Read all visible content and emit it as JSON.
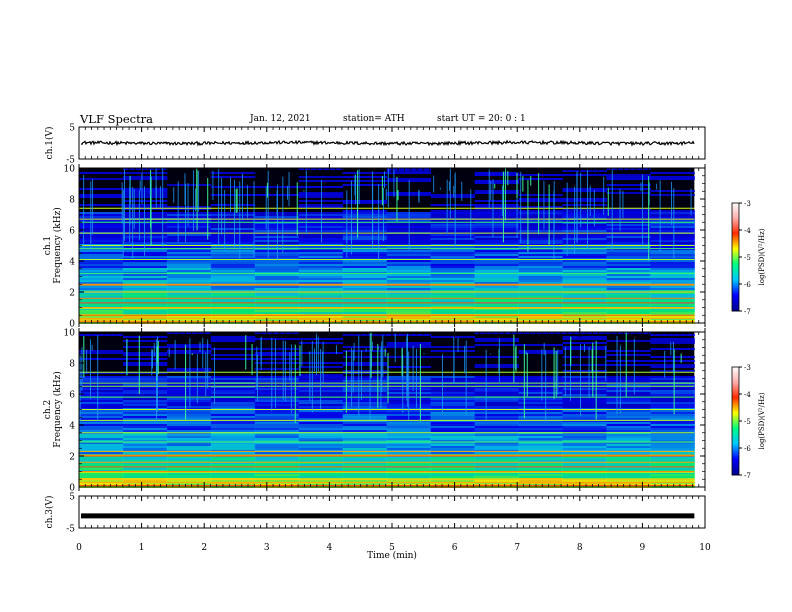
{
  "header": {
    "title": "VLF Spectra",
    "date": "Jan. 12, 2021",
    "station": "station= ATH",
    "start": "start UT = 20: 0 : 1"
  },
  "colors": {
    "spectrogram_bg": "#000010",
    "trace": "#000000",
    "colormap": [
      "#00008f",
      "#0000ff",
      "#00c8ff",
      "#00ff80",
      "#ffff00",
      "#ff2a00",
      "#ffb0b0",
      "#ffffff"
    ]
  },
  "chart_data": [
    {
      "type": "line",
      "name": "ch1-trace",
      "ylabel": "ch.1(V)",
      "ylim": [
        -5,
        5
      ],
      "yticks": [
        -5,
        5
      ],
      "xlim": [
        0,
        10
      ],
      "approx_level": 0,
      "approx_noise_amplitude": 0.7
    },
    {
      "type": "heatmap",
      "name": "ch1-spectrogram",
      "ylabel_channel": "ch.1",
      "ylabel": "Frequency (kHz)",
      "ylim": [
        0,
        10
      ],
      "yticks": [
        0,
        2,
        4,
        6,
        8,
        10
      ],
      "xlim": [
        0,
        10
      ],
      "data_end_min": 9.83,
      "colorbar": {
        "label": "log(PSD)(V²/Hz)",
        "range": [
          -7,
          -3
        ],
        "ticks": [
          -3,
          -4,
          -5,
          -6,
          -7
        ]
      },
      "band_lines_khz": [
        0.1,
        0.3,
        0.5,
        1.0,
        1.3,
        1.6,
        2.0,
        2.5,
        3.2,
        4.1,
        4.8,
        5.0,
        5.8,
        6.5,
        6.7,
        7.4
      ]
    },
    {
      "type": "heatmap",
      "name": "ch2-spectrogram",
      "ylabel_channel": "ch.2",
      "ylabel": "Frequency (kHz)",
      "ylim": [
        0,
        10
      ],
      "yticks": [
        0,
        2,
        4,
        6,
        8,
        10
      ],
      "xlim": [
        0,
        10
      ],
      "data_end_min": 9.83,
      "colorbar": {
        "label": "log(PSD)(V²/Hz)",
        "range": [
          -7,
          -3
        ],
        "ticks": [
          -3,
          -4,
          -5,
          -6,
          -7
        ]
      },
      "band_lines_khz": [
        0.1,
        0.3,
        0.5,
        1.0,
        1.3,
        1.6,
        2.0,
        2.3,
        2.9,
        3.5,
        4.3,
        5.0,
        5.8,
        6.5,
        6.7,
        7.4
      ]
    },
    {
      "type": "line",
      "name": "ch3-trace",
      "ylabel": "ch.3(V)",
      "ylim": [
        -5,
        5
      ],
      "yticks": [
        -5,
        5
      ],
      "xlim": [
        0,
        10
      ],
      "approx_level": -1.2,
      "approx_noise_amplitude": 0
    }
  ],
  "xaxis": {
    "label": "Time (min)",
    "ticks": [
      0,
      1,
      2,
      3,
      4,
      5,
      6,
      7,
      8,
      9,
      10
    ]
  }
}
